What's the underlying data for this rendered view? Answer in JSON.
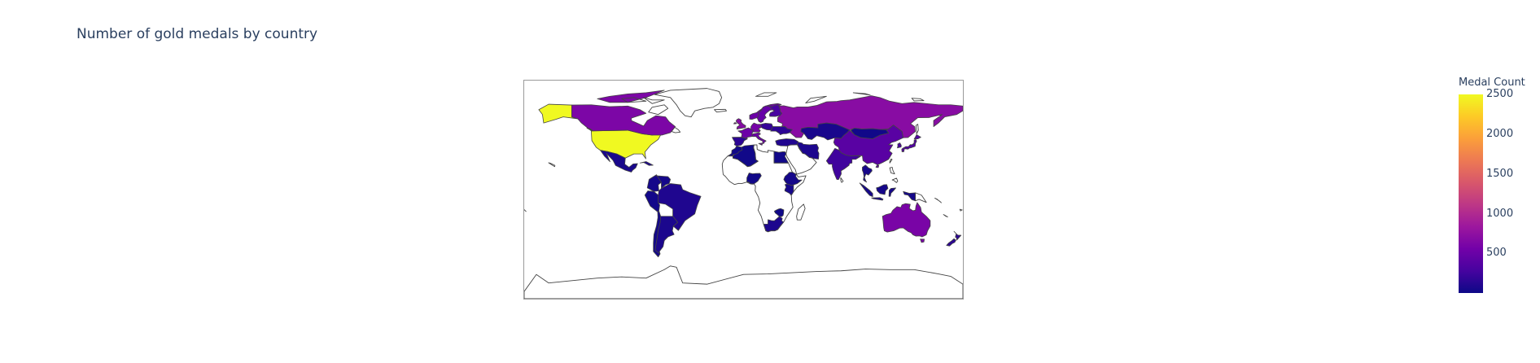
{
  "chart_data": {
    "type": "choropleth",
    "title": "Number of gold medals by country",
    "projection": "equirectangular",
    "coastlines": true,
    "colorscale": [
      "#0d0887",
      "#46039f",
      "#7201a8",
      "#9c179e",
      "#bd3786",
      "#d8576b",
      "#ed7953",
      "#fb9f3a",
      "#fdca26",
      "#f0f921"
    ],
    "colorbar": {
      "title": "Medal Count",
      "range": [
        1,
        2500
      ],
      "ticks": [
        500,
        1000,
        1500,
        2000,
        2500
      ],
      "placement": "right"
    },
    "countries": [
      {
        "code": "USA",
        "value": 2500
      },
      {
        "code": "CAN",
        "value": 620
      },
      {
        "code": "MEX",
        "value": 60
      },
      {
        "code": "CUB",
        "value": 80
      },
      {
        "code": "BRA",
        "value": 90
      },
      {
        "code": "ARG",
        "value": 70
      },
      {
        "code": "COL",
        "value": 40
      },
      {
        "code": "VEN",
        "value": 40
      },
      {
        "code": "PER",
        "value": 30
      },
      {
        "code": "CHL",
        "value": 30
      },
      {
        "code": "GBR",
        "value": 680
      },
      {
        "code": "FRA",
        "value": 520
      },
      {
        "code": "DEU",
        "value": 580
      },
      {
        "code": "ITA",
        "value": 520
      },
      {
        "code": "ESP",
        "value": 150
      },
      {
        "code": "NOR",
        "value": 520
      },
      {
        "code": "SWE",
        "value": 480
      },
      {
        "code": "FIN",
        "value": 300
      },
      {
        "code": "POL",
        "value": 200
      },
      {
        "code": "UKR",
        "value": 150
      },
      {
        "code": "RUS",
        "value": 700
      },
      {
        "code": "KAZ",
        "value": 60
      },
      {
        "code": "CHN",
        "value": 400
      },
      {
        "code": "MNG",
        "value": 20
      },
      {
        "code": "JPN",
        "value": 350
      },
      {
        "code": "KOR",
        "value": 300
      },
      {
        "code": "IND",
        "value": 250
      },
      {
        "code": "IRN",
        "value": 80
      },
      {
        "code": "TUR",
        "value": 100
      },
      {
        "code": "THA",
        "value": 50
      },
      {
        "code": "IDN",
        "value": 40
      },
      {
        "code": "AUS",
        "value": 600
      },
      {
        "code": "NZL",
        "value": 150
      },
      {
        "code": "EGY",
        "value": 20
      },
      {
        "code": "DZA",
        "value": 20
      },
      {
        "code": "MAR",
        "value": 20
      },
      {
        "code": "NGA",
        "value": 20
      },
      {
        "code": "ETH",
        "value": 40
      },
      {
        "code": "KEN",
        "value": 50
      },
      {
        "code": "ZAF",
        "value": 80
      },
      {
        "code": "ZWE",
        "value": 10
      }
    ]
  }
}
